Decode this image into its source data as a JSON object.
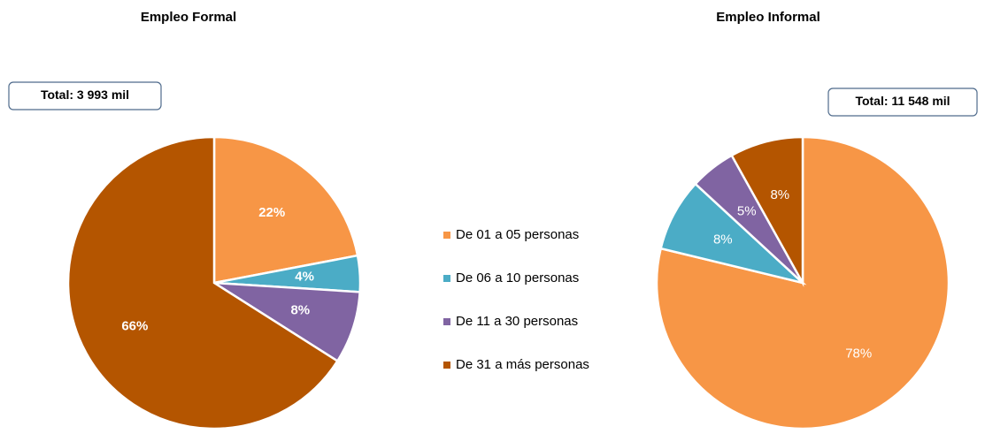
{
  "legend": {
    "items": [
      "De 01 a 05 personas",
      "De 06 a 10 personas",
      "De 11 a 30 personas",
      "De 31 a más personas"
    ],
    "colors": [
      "#f79646",
      "#4bacc6",
      "#8064a2",
      "#b45500"
    ]
  },
  "chart_data": [
    {
      "type": "pie",
      "title": "Empleo Formal",
      "annotation": "Total: 3 993 mil",
      "values": [
        22,
        4,
        8,
        66
      ],
      "value_labels": [
        "22%",
        "4%",
        "8%",
        "66%"
      ]
    },
    {
      "type": "pie",
      "title": "Empleo Informal",
      "annotation": "Total: 11 548 mil",
      "values": [
        78,
        8,
        5,
        8
      ],
      "value_labels": [
        "78%",
        "8%",
        "5%",
        "8%"
      ]
    }
  ]
}
